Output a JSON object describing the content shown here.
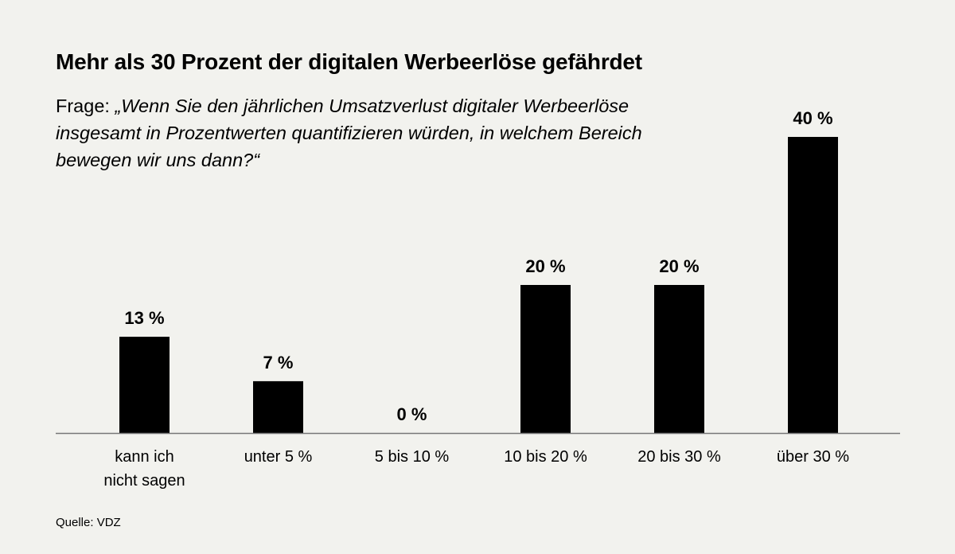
{
  "title": "Mehr als 30 Prozent der digitalen Werbeerlöse gefährdet",
  "subtitle_prefix": "Frage: ",
  "subtitle_question": "„Wenn Sie den jährlichen Umsatzverlust digitaler Werbeerlöse insgesamt in Prozentwerten quantifizieren würden, in welchem Bereich bewegen wir uns dann?“",
  "source": "Quelle: VDZ",
  "chart_data": {
    "type": "bar",
    "title": "Mehr als 30 Prozent der digitalen Werbeerlöse gefährdet",
    "categories": [
      [
        "kann ich",
        "nicht sagen"
      ],
      [
        "unter 5 %"
      ],
      [
        "5 bis 10 %"
      ],
      [
        "10 bis 20 %"
      ],
      [
        "20 bis 30 %"
      ],
      [
        "über 30 %"
      ]
    ],
    "values": [
      13,
      7,
      0,
      20,
      20,
      40
    ],
    "data_labels": [
      "13 %",
      "7 %",
      "0 %",
      "20 %",
      "20 %",
      "40 %"
    ],
    "unit": "%",
    "ylim": [
      0,
      40
    ],
    "grid": false,
    "bar_color": "#000000",
    "axis_color": "#777777",
    "background": "#f2f2ee"
  }
}
